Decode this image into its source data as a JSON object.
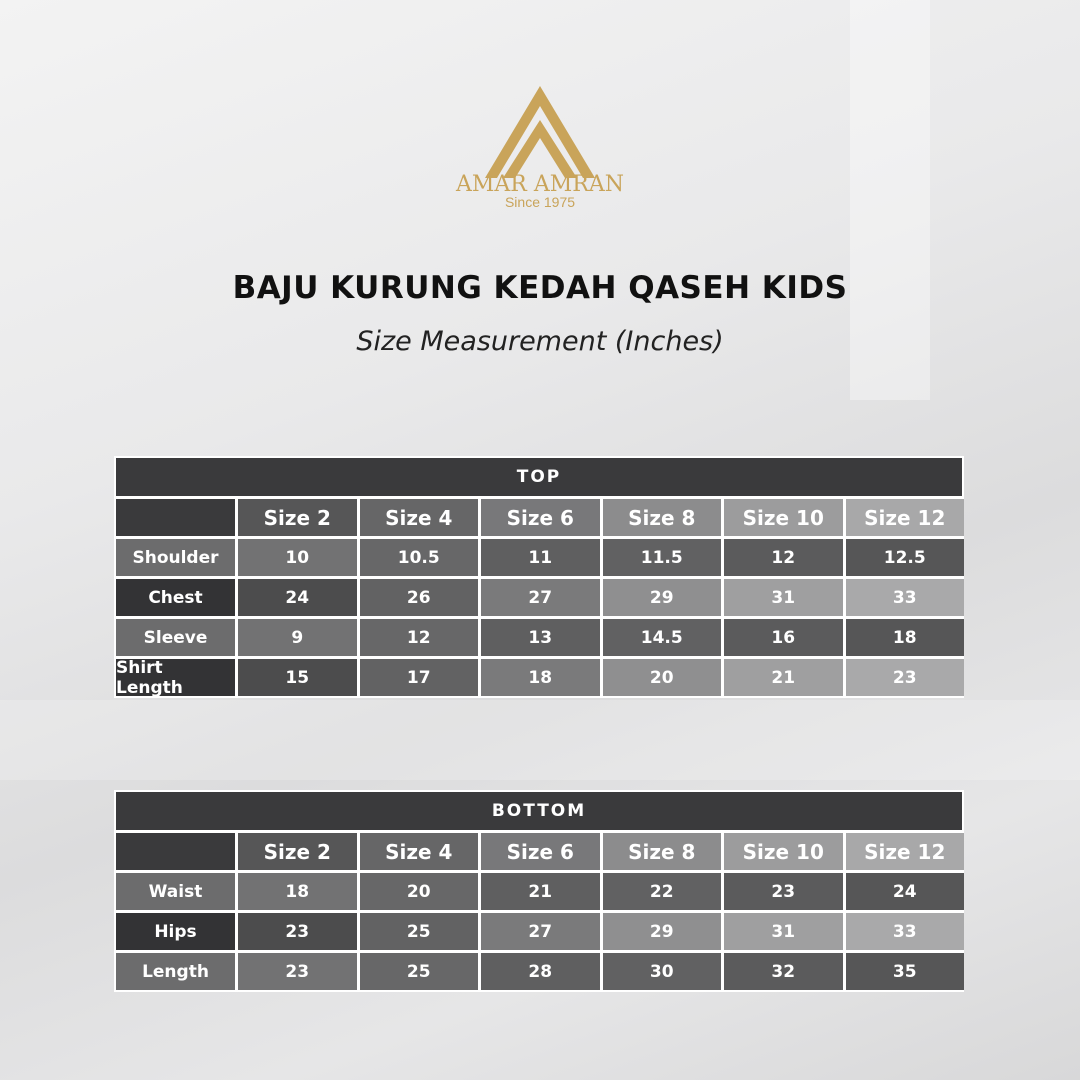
{
  "logo": {
    "brand": "AMAR AMRAN",
    "since": "Since 1975",
    "color": "#c9a45a"
  },
  "title": "BAJU KURUNG KEDAH QASEH KIDS",
  "subtitle": "Size Measurement (Inches)",
  "sizes": [
    "Size 2",
    "Size 4",
    "Size 6",
    "Size 8",
    "Size 10",
    "Size 12"
  ],
  "top": {
    "heading": "TOP",
    "rows": [
      {
        "label": "Shoulder",
        "values": [
          "10",
          "10.5",
          "11",
          "11.5",
          "12",
          "12.5"
        ]
      },
      {
        "label": "Chest",
        "values": [
          "24",
          "26",
          "27",
          "29",
          "31",
          "33"
        ]
      },
      {
        "label": "Sleeve",
        "values": [
          "9",
          "12",
          "13",
          "14.5",
          "16",
          "18"
        ]
      },
      {
        "label": "Shirt Length",
        "values": [
          "15",
          "17",
          "18",
          "20",
          "21",
          "23"
        ]
      }
    ]
  },
  "bottom": {
    "heading": "BOTTOM",
    "rows": [
      {
        "label": "Waist",
        "values": [
          "18",
          "20",
          "21",
          "22",
          "23",
          "24"
        ]
      },
      {
        "label": "Hips",
        "values": [
          "23",
          "25",
          "27",
          "29",
          "31",
          "33"
        ]
      },
      {
        "label": "Length",
        "values": [
          "23",
          "25",
          "28",
          "30",
          "32",
          "35"
        ]
      }
    ]
  }
}
